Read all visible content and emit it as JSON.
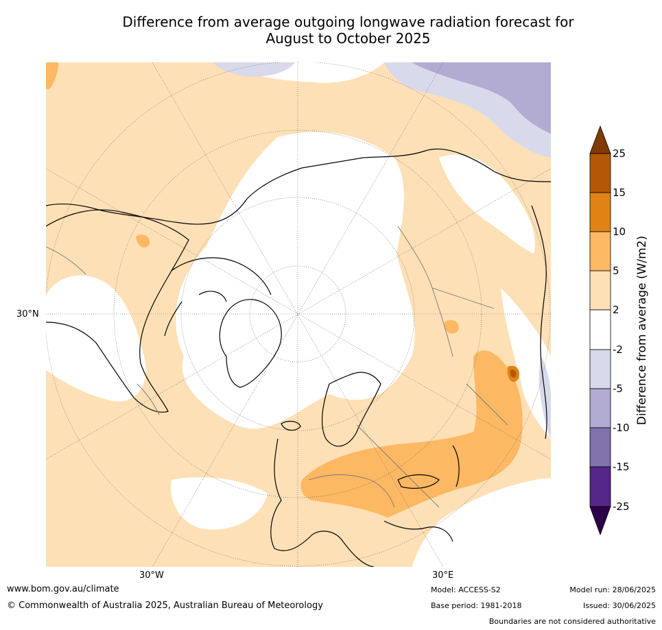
{
  "title": {
    "line1": "Difference from average outgoing longwave radiation forecast for",
    "line2": "August to October 2025"
  },
  "map": {
    "projection": "north polar stereographic",
    "lat_labels": [
      "30°N"
    ],
    "lon_labels": [
      "30°W",
      "30°E"
    ]
  },
  "colorbar": {
    "label": "Difference from average (W/m2)",
    "ticks": [
      "25",
      "15",
      "10",
      "5",
      "2",
      "-2",
      "-5",
      "-10",
      "-15",
      "-25"
    ],
    "colors": {
      "gt25": "#7f3b08",
      "15_25": "#b35806",
      "10_15": "#e08214",
      "5_10": "#fdb863",
      "2_5": "#fee0b6",
      "m2_2": "#ffffff",
      "m5_m2": "#d8daeb",
      "m10_m5": "#b2abd2",
      "m15_m10": "#8073ac",
      "m25_m15": "#542788",
      "lt_m25": "#2d004b"
    }
  },
  "footer": {
    "website": "www.bom.gov.au/climate",
    "copyright": "© Commonwealth of Australia 2025, Australian Bureau of Meteorology",
    "model": "Model: ACCESS-S2",
    "base_period": "Base period: 1981-2018",
    "model_run": "Model run: 28/06/2025",
    "issued": "Issued: 30/06/2025",
    "disclaimer": "Boundaries are not considered authoritative"
  }
}
